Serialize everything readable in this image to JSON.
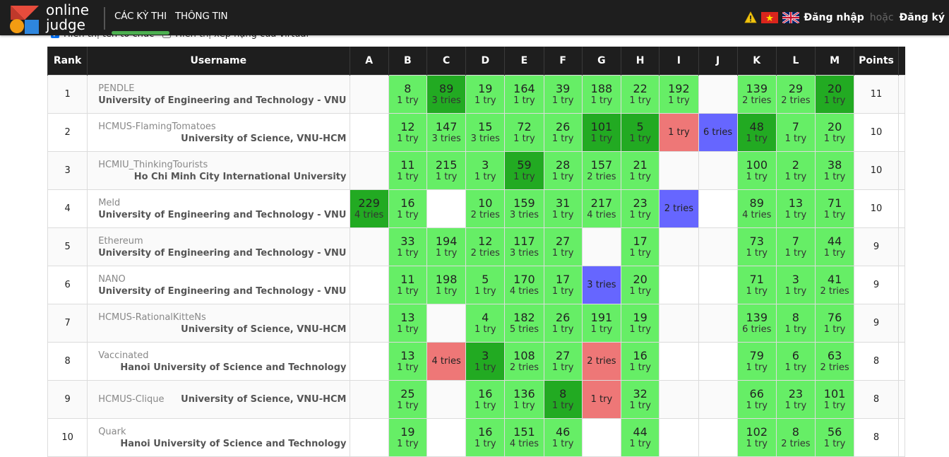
{
  "brand": {
    "line1": "online",
    "line2": "judge"
  },
  "nav": {
    "items": [
      {
        "label": "CÁC KỲ THI",
        "active": true
      },
      {
        "label": "THÔNG TIN",
        "active": false
      }
    ],
    "login": "Đăng nhập",
    "or": "hoặc",
    "register": "Đăng ký"
  },
  "options": {
    "show_org": "Hiển thị tên tổ chức",
    "show_virtual": "Hiển thị xếp hạng của virtual"
  },
  "table": {
    "headers": {
      "rank": "Rank",
      "username": "Username",
      "points": "Points",
      "problems": [
        "A",
        "B",
        "C",
        "D",
        "E",
        "F",
        "G",
        "H",
        "I",
        "J",
        "K",
        "L",
        "M"
      ]
    },
    "rows": [
      {
        "rank": "1",
        "user": "PENDLE",
        "org": "University of Engineering and Technology - VNU",
        "points": "11",
        "cells": [
          {
            "s": "empty"
          },
          {
            "s": "ok",
            "t": "8",
            "r": "1 try"
          },
          {
            "s": "first",
            "t": "89",
            "r": "3 tries"
          },
          {
            "s": "ok",
            "t": "19",
            "r": "1 try"
          },
          {
            "s": "ok",
            "t": "164",
            "r": "1 try"
          },
          {
            "s": "ok",
            "t": "39",
            "r": "1 try"
          },
          {
            "s": "ok",
            "t": "188",
            "r": "1 try"
          },
          {
            "s": "ok",
            "t": "22",
            "r": "1 try"
          },
          {
            "s": "ok",
            "t": "192",
            "r": "1 try"
          },
          {
            "s": "empty"
          },
          {
            "s": "ok",
            "t": "139",
            "r": "2 tries"
          },
          {
            "s": "ok",
            "t": "29",
            "r": "2 tries"
          },
          {
            "s": "first",
            "t": "20",
            "r": "1 try"
          }
        ]
      },
      {
        "rank": "2",
        "user": "HCMUS-FlamingTomatoes",
        "org": "University of Science, VNU-HCM",
        "points": "10",
        "cells": [
          {
            "s": "empty"
          },
          {
            "s": "ok",
            "t": "12",
            "r": "1 try"
          },
          {
            "s": "ok",
            "t": "147",
            "r": "3 tries"
          },
          {
            "s": "ok",
            "t": "15",
            "r": "3 tries"
          },
          {
            "s": "ok",
            "t": "72",
            "r": "1 try"
          },
          {
            "s": "ok",
            "t": "26",
            "r": "1 try"
          },
          {
            "s": "first",
            "t": "101",
            "r": "1 try"
          },
          {
            "s": "first",
            "t": "5",
            "r": "1 try"
          },
          {
            "s": "fail",
            "r": "1 try"
          },
          {
            "s": "pend",
            "r": "6 tries"
          },
          {
            "s": "first",
            "t": "48",
            "r": "1 try"
          },
          {
            "s": "ok",
            "t": "7",
            "r": "1 try"
          },
          {
            "s": "ok",
            "t": "20",
            "r": "1 try"
          }
        ]
      },
      {
        "rank": "3",
        "user": "HCMIU_ThinkingTourists",
        "org": "Ho Chi Minh City International University",
        "points": "10",
        "cells": [
          {
            "s": "empty"
          },
          {
            "s": "ok",
            "t": "11",
            "r": "1 try"
          },
          {
            "s": "ok",
            "t": "215",
            "r": "1 try"
          },
          {
            "s": "ok",
            "t": "3",
            "r": "1 try"
          },
          {
            "s": "first",
            "t": "59",
            "r": "1 try"
          },
          {
            "s": "ok",
            "t": "28",
            "r": "1 try"
          },
          {
            "s": "ok",
            "t": "157",
            "r": "2 tries"
          },
          {
            "s": "ok",
            "t": "21",
            "r": "1 try"
          },
          {
            "s": "empty"
          },
          {
            "s": "empty"
          },
          {
            "s": "ok",
            "t": "100",
            "r": "1 try"
          },
          {
            "s": "ok",
            "t": "2",
            "r": "1 try"
          },
          {
            "s": "ok",
            "t": "38",
            "r": "1 try"
          }
        ]
      },
      {
        "rank": "4",
        "user": "Meld",
        "org": "University of Engineering and Technology - VNU",
        "points": "10",
        "cells": [
          {
            "s": "first",
            "t": "229",
            "r": "4 tries"
          },
          {
            "s": "ok",
            "t": "16",
            "r": "1 try"
          },
          {
            "s": "empty"
          },
          {
            "s": "ok",
            "t": "10",
            "r": "2 tries"
          },
          {
            "s": "ok",
            "t": "159",
            "r": "3 tries"
          },
          {
            "s": "ok",
            "t": "31",
            "r": "1 try"
          },
          {
            "s": "ok",
            "t": "217",
            "r": "4 tries"
          },
          {
            "s": "ok",
            "t": "23",
            "r": "1 try"
          },
          {
            "s": "pend",
            "r": "2 tries"
          },
          {
            "s": "empty"
          },
          {
            "s": "ok",
            "t": "89",
            "r": "4 tries"
          },
          {
            "s": "ok",
            "t": "13",
            "r": "1 try"
          },
          {
            "s": "ok",
            "t": "71",
            "r": "1 try"
          }
        ]
      },
      {
        "rank": "5",
        "user": "Ethereum",
        "org": "University of Engineering and Technology - VNU",
        "points": "9",
        "cells": [
          {
            "s": "empty"
          },
          {
            "s": "ok",
            "t": "33",
            "r": "1 try"
          },
          {
            "s": "ok",
            "t": "194",
            "r": "1 try"
          },
          {
            "s": "ok",
            "t": "12",
            "r": "2 tries"
          },
          {
            "s": "ok",
            "t": "117",
            "r": "3 tries"
          },
          {
            "s": "ok",
            "t": "27",
            "r": "1 try"
          },
          {
            "s": "empty"
          },
          {
            "s": "ok",
            "t": "17",
            "r": "1 try"
          },
          {
            "s": "empty"
          },
          {
            "s": "empty"
          },
          {
            "s": "ok",
            "t": "73",
            "r": "1 try"
          },
          {
            "s": "ok",
            "t": "7",
            "r": "1 try"
          },
          {
            "s": "ok",
            "t": "44",
            "r": "1 try"
          }
        ]
      },
      {
        "rank": "6",
        "user": "NANO",
        "org": "University of Engineering and Technology - VNU",
        "points": "9",
        "cells": [
          {
            "s": "empty"
          },
          {
            "s": "ok",
            "t": "11",
            "r": "1 try"
          },
          {
            "s": "ok",
            "t": "198",
            "r": "1 try"
          },
          {
            "s": "ok",
            "t": "5",
            "r": "1 try"
          },
          {
            "s": "ok",
            "t": "170",
            "r": "4 tries"
          },
          {
            "s": "ok",
            "t": "17",
            "r": "1 try"
          },
          {
            "s": "pend",
            "r": "3 tries"
          },
          {
            "s": "ok",
            "t": "20",
            "r": "1 try"
          },
          {
            "s": "empty"
          },
          {
            "s": "empty"
          },
          {
            "s": "ok",
            "t": "71",
            "r": "1 try"
          },
          {
            "s": "ok",
            "t": "3",
            "r": "1 try"
          },
          {
            "s": "ok",
            "t": "41",
            "r": "2 tries"
          }
        ]
      },
      {
        "rank": "7",
        "user": "HCMUS-RationalKitteNs",
        "org": "University of Science, VNU-HCM",
        "points": "9",
        "cells": [
          {
            "s": "empty"
          },
          {
            "s": "ok",
            "t": "13",
            "r": "1 try"
          },
          {
            "s": "empty"
          },
          {
            "s": "ok",
            "t": "4",
            "r": "1 try"
          },
          {
            "s": "ok",
            "t": "182",
            "r": "5 tries"
          },
          {
            "s": "ok",
            "t": "26",
            "r": "1 try"
          },
          {
            "s": "ok",
            "t": "191",
            "r": "1 try"
          },
          {
            "s": "ok",
            "t": "19",
            "r": "1 try"
          },
          {
            "s": "empty"
          },
          {
            "s": "empty"
          },
          {
            "s": "ok",
            "t": "139",
            "r": "6 tries"
          },
          {
            "s": "ok",
            "t": "8",
            "r": "1 try"
          },
          {
            "s": "ok",
            "t": "76",
            "r": "1 try"
          }
        ]
      },
      {
        "rank": "8",
        "user": "Vaccinated",
        "org": "Hanoi University of Science and Technology",
        "points": "8",
        "cells": [
          {
            "s": "empty"
          },
          {
            "s": "ok",
            "t": "13",
            "r": "1 try"
          },
          {
            "s": "fail",
            "r": "4 tries"
          },
          {
            "s": "first",
            "t": "3",
            "r": "1 try"
          },
          {
            "s": "ok",
            "t": "108",
            "r": "2 tries"
          },
          {
            "s": "ok",
            "t": "27",
            "r": "1 try"
          },
          {
            "s": "fail",
            "r": "2 tries"
          },
          {
            "s": "ok",
            "t": "16",
            "r": "1 try"
          },
          {
            "s": "empty"
          },
          {
            "s": "empty"
          },
          {
            "s": "ok",
            "t": "79",
            "r": "1 try"
          },
          {
            "s": "ok",
            "t": "6",
            "r": "1 try"
          },
          {
            "s": "ok",
            "t": "63",
            "r": "2 tries"
          }
        ]
      },
      {
        "rank": "9",
        "user": "HCMUS-Clique",
        "org": "University of Science, VNU-HCM",
        "points": "8",
        "inline": true,
        "cells": [
          {
            "s": "empty"
          },
          {
            "s": "ok",
            "t": "25",
            "r": "1 try"
          },
          {
            "s": "empty"
          },
          {
            "s": "ok",
            "t": "16",
            "r": "1 try"
          },
          {
            "s": "ok",
            "t": "136",
            "r": "1 try"
          },
          {
            "s": "first",
            "t": "8",
            "r": "1 try"
          },
          {
            "s": "fail",
            "r": "1 try"
          },
          {
            "s": "ok",
            "t": "32",
            "r": "1 try"
          },
          {
            "s": "empty"
          },
          {
            "s": "empty"
          },
          {
            "s": "ok",
            "t": "66",
            "r": "1 try"
          },
          {
            "s": "ok",
            "t": "23",
            "r": "1 try"
          },
          {
            "s": "ok",
            "t": "101",
            "r": "1 try"
          }
        ]
      },
      {
        "rank": "10",
        "user": "Quark",
        "org": "Hanoi University of Science and Technology",
        "points": "8",
        "cells": [
          {
            "s": "empty"
          },
          {
            "s": "ok",
            "t": "19",
            "r": "1 try"
          },
          {
            "s": "empty"
          },
          {
            "s": "ok",
            "t": "16",
            "r": "1 try"
          },
          {
            "s": "ok",
            "t": "151",
            "r": "4 tries"
          },
          {
            "s": "ok",
            "t": "46",
            "r": "1 try"
          },
          {
            "s": "empty"
          },
          {
            "s": "ok",
            "t": "44",
            "r": "1 try"
          },
          {
            "s": "empty"
          },
          {
            "s": "empty"
          },
          {
            "s": "ok",
            "t": "102",
            "r": "1 try"
          },
          {
            "s": "ok",
            "t": "8",
            "r": "2 tries"
          },
          {
            "s": "ok",
            "t": "56",
            "r": "1 try"
          }
        ]
      }
    ]
  },
  "colors": {
    "accepted": "#66ee66",
    "first_solve": "#22aa22",
    "failed": "#ee7777",
    "pending": "#6666ff",
    "header_bg": "#1e1e1e"
  }
}
